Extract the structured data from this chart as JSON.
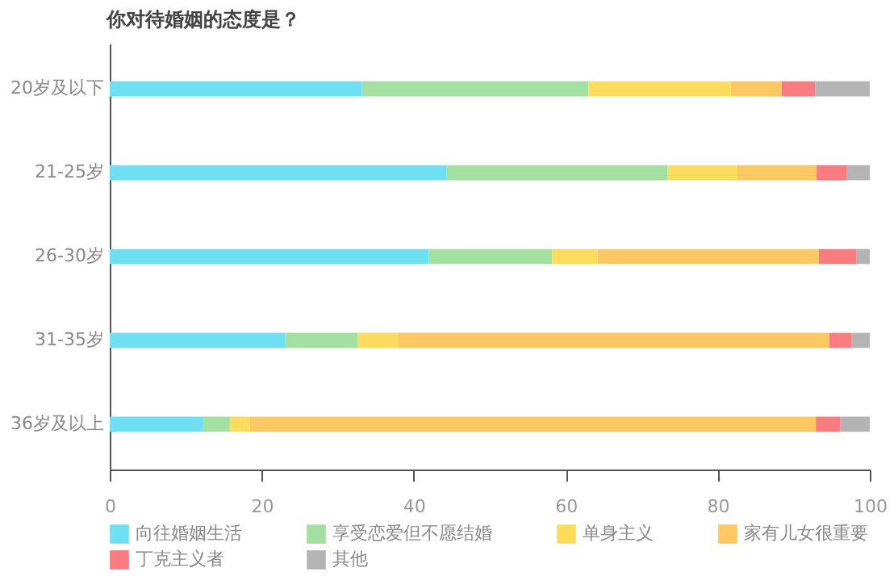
{
  "chart_data": {
    "type": "bar",
    "orientation": "horizontal",
    "stacked": true,
    "title": "你对待婚姻的态度是？",
    "categories": [
      "20岁及以下",
      "21-25岁",
      "26-30岁",
      "31-35岁",
      "36岁及以上"
    ],
    "series": [
      {
        "name": "向往婚姻生活",
        "color": "#6fe0f4",
        "values": [
          33.2,
          44.3,
          42.0,
          23.1,
          12.3
        ]
      },
      {
        "name": "享受恋爱但不愿结婚",
        "color": "#a4e0a0",
        "values": [
          29.8,
          29.1,
          16.2,
          9.5,
          3.5
        ]
      },
      {
        "name": "单身主义",
        "color": "#fcdc5c",
        "values": [
          18.7,
          9.1,
          6.0,
          5.4,
          2.6
        ]
      },
      {
        "name": "家有儿女很重要",
        "color": "#fcc864",
        "values": [
          6.7,
          10.5,
          29.1,
          56.7,
          74.5
        ]
      },
      {
        "name": "丁克主义者",
        "color": "#f87c80",
        "values": [
          4.4,
          4.0,
          4.9,
          2.9,
          3.2
        ]
      },
      {
        "name": "其他",
        "color": "#b4b4b4",
        "values": [
          7.2,
          3.0,
          1.8,
          2.4,
          3.9
        ]
      }
    ],
    "xlim": [
      0,
      100
    ],
    "xticks": [
      0,
      20,
      40,
      60,
      80,
      100
    ],
    "grid": false,
    "legend": "bottom"
  }
}
